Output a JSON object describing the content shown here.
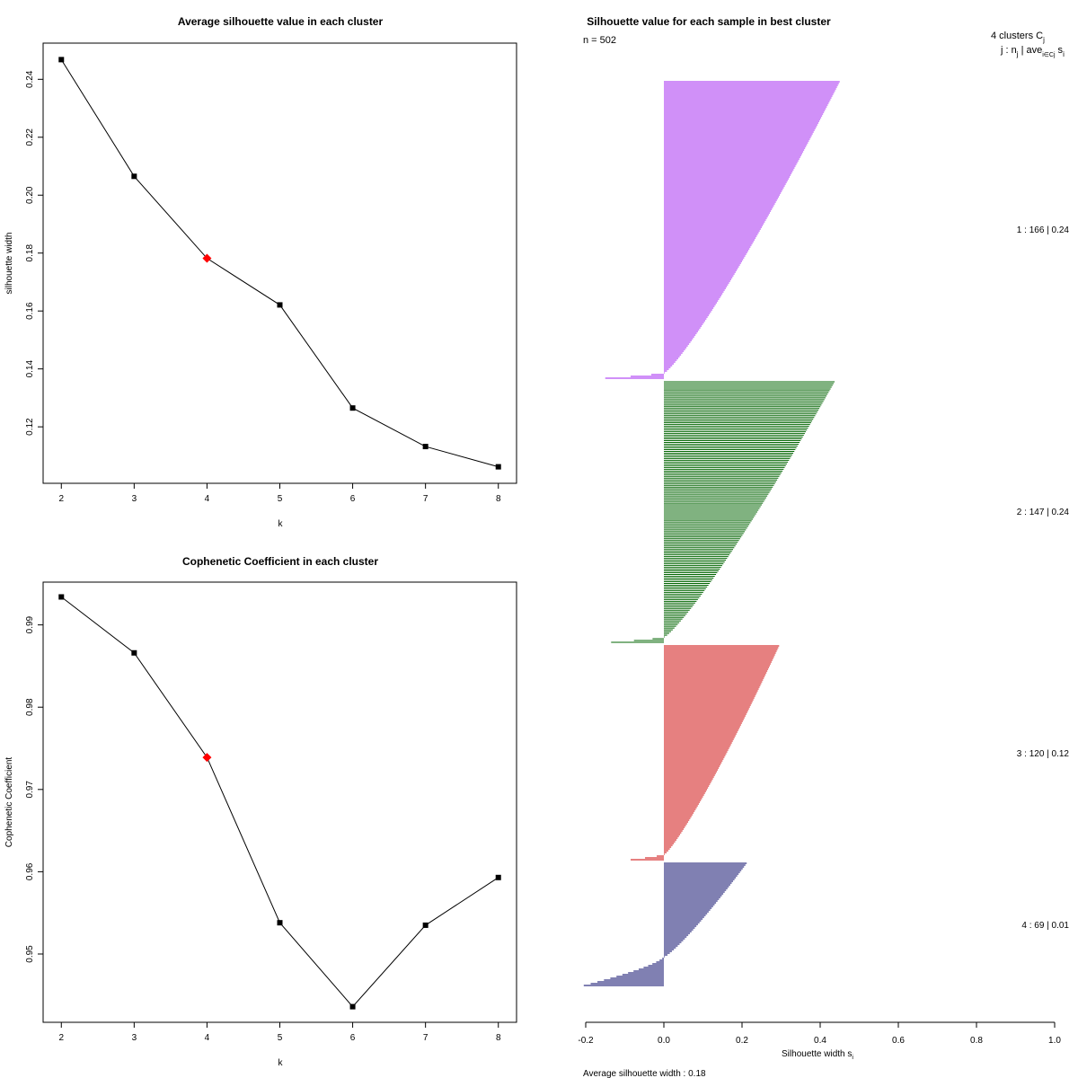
{
  "chart_data": [
    {
      "id": "sil",
      "type": "line",
      "title": "Average silhouette value in each cluster",
      "xlabel": "k",
      "ylabel": "silhouette width",
      "x": [
        2,
        3,
        4,
        5,
        6,
        7,
        8
      ],
      "values": [
        0.2468,
        0.2065,
        0.1782,
        0.1621,
        0.1265,
        0.1132,
        0.1062
      ],
      "highlight_k": 4,
      "xticks": [
        "2",
        "3",
        "4",
        "5",
        "6",
        "7",
        "8"
      ],
      "yticks": [
        0.12,
        0.14,
        0.16,
        0.18,
        0.2,
        0.22,
        0.24
      ],
      "ytick_labels": [
        "0.12",
        "0.14",
        "0.16",
        "0.18",
        "0.20",
        "0.22",
        "0.24"
      ],
      "xlim": [
        1.75,
        8.25
      ],
      "ylim": [
        0.1005,
        0.2525
      ]
    },
    {
      "id": "coph",
      "type": "line",
      "title": "Cophenetic Coefficient in each cluster",
      "xlabel": "k",
      "ylabel": "Cophenetic Coefficient",
      "x": [
        2,
        3,
        4,
        5,
        6,
        7,
        8
      ],
      "values": [
        0.9934,
        0.9866,
        0.9739,
        0.9538,
        0.9436,
        0.9535,
        0.9593
      ],
      "highlight_k": 4,
      "xticks": [
        "2",
        "3",
        "4",
        "5",
        "6",
        "7",
        "8"
      ],
      "yticks": [
        0.95,
        0.96,
        0.97,
        0.98,
        0.99
      ],
      "ytick_labels": [
        "0.95",
        "0.96",
        "0.97",
        "0.98",
        "0.99"
      ],
      "xlim": [
        1.75,
        8.25
      ],
      "ylim": [
        0.9417,
        0.9952
      ]
    },
    {
      "id": "silplot",
      "type": "bar",
      "orientation": "horizontal",
      "title": "Silhouette value for each sample in best cluster",
      "n_label": "n = 502",
      "legend_title": "4 clusters  C",
      "legend_title_sub": "j",
      "legend_header": "j :  n",
      "legend_header_sub": "j",
      "legend_header_rest": " | ave",
      "legend_header_sub2": "i∈Cj",
      "legend_header_tail": " s",
      "legend_header_tail_sub": "i",
      "xlabel": "Silhouette width s",
      "xlabel_sub": "i",
      "xticks": [
        -0.2,
        0.0,
        0.2,
        0.4,
        0.6,
        0.8,
        1.0
      ],
      "xtick_labels": [
        "-0.2",
        "0.0",
        "0.2",
        "0.4",
        "0.6",
        "0.8",
        "1.0"
      ],
      "xlim": [
        -0.2,
        1.0
      ],
      "average_label": "Average silhouette width :  0.18",
      "clusters": [
        {
          "j": 1,
          "n": 166,
          "avg": 0.24,
          "label": "1 :   166  |  0.24",
          "color": "#a020f0",
          "top": 0.448,
          "bottom": 0.0,
          "negative_min": -0.15
        },
        {
          "j": 2,
          "n": 147,
          "avg": 0.24,
          "label": "2 :   147  |  0.24",
          "color": "#006400",
          "top": 0.435,
          "bottom": 0.0,
          "negative_min": -0.135
        },
        {
          "j": 3,
          "n": 120,
          "avg": 0.12,
          "label": "3 :   120  |  0.12",
          "color": "#cc0000",
          "top": 0.293,
          "bottom": 0.0,
          "negative_min": -0.085
        },
        {
          "j": 4,
          "n": 69,
          "avg": 0.01,
          "label": "4 :   69  |  0.01",
          "color": "#000066",
          "top": 0.21,
          "bottom": 0.0,
          "negative_min": -0.205
        }
      ]
    }
  ]
}
